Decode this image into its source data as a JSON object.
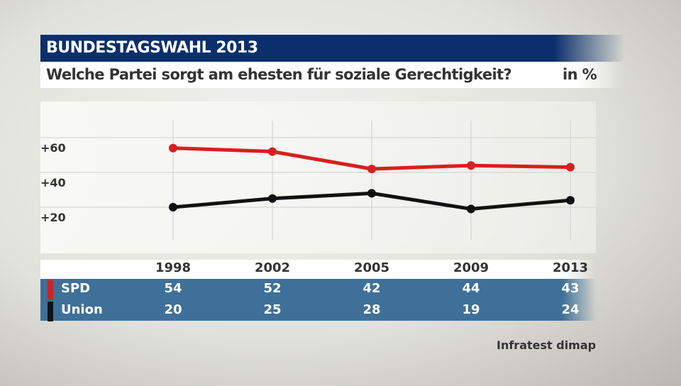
{
  "header": {
    "title": "BUNDESTAGSWAHL 2013",
    "question": "Welche Partei sorgt am ehesten für soziale Gerechtigkeit?",
    "unit": "in %"
  },
  "source": "Infratest dimap",
  "chart_data": {
    "type": "line",
    "categories": [
      "1998",
      "2002",
      "2005",
      "2009",
      "2013"
    ],
    "yticks": [
      "+20",
      "+40",
      "+60"
    ],
    "ylim": [
      0,
      68
    ],
    "grid": true,
    "series": [
      {
        "name": "SPD",
        "color": "#d71f1f",
        "values": [
          54,
          52,
          42,
          44,
          43
        ]
      },
      {
        "name": "Union",
        "color": "#111111",
        "values": [
          20,
          25,
          28,
          19,
          24
        ]
      }
    ]
  }
}
